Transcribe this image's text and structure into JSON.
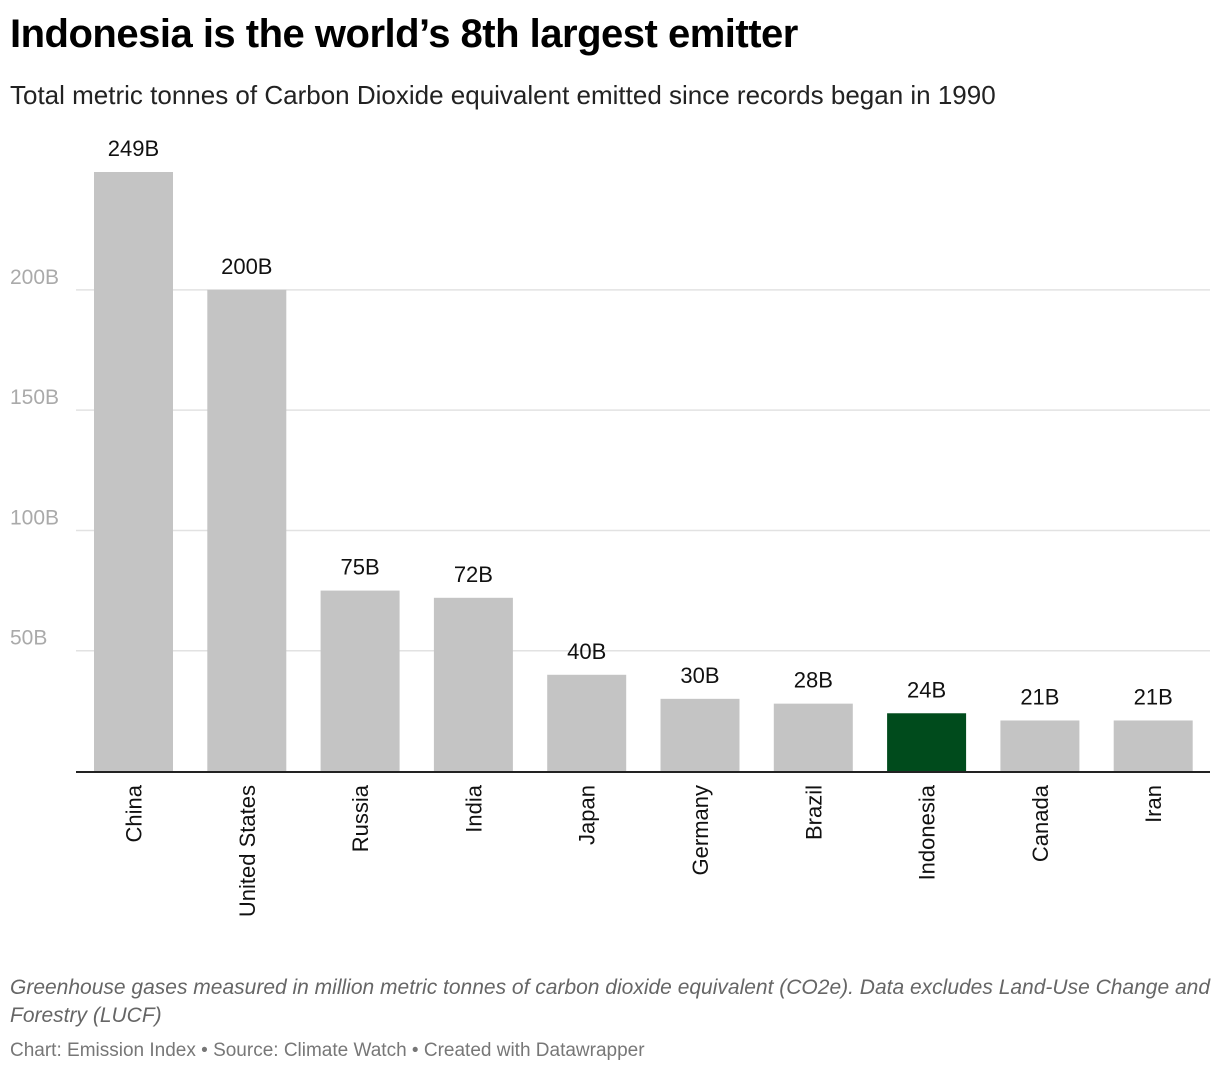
{
  "header": {
    "title": "Indonesia is the world’s 8th largest emitter",
    "subtitle": "Total metric tonnes of Carbon Dioxide equivalent emitted since records began in 1990"
  },
  "footer": {
    "note": "Greenhouse gases measured in million metric tonnes of carbon dioxide equivalent (CO2e). Data excludes Land-Use Change and Forestry (LUCF)",
    "source": "Chart: Emission Index • Source: Climate Watch • Created with Datawrapper"
  },
  "chart_data": {
    "type": "bar",
    "orientation": "vertical",
    "categories": [
      "China",
      "United States",
      "Russia",
      "India",
      "Japan",
      "Germany",
      "Brazil",
      "Indonesia",
      "Canada",
      "Iran"
    ],
    "values": [
      249,
      200,
      75,
      72,
      40,
      30,
      28,
      24,
      21,
      21
    ],
    "value_labels": [
      "249B",
      "200B",
      "75B",
      "72B",
      "40B",
      "30B",
      "28B",
      "24B",
      "21B",
      "21B"
    ],
    "ylim": [
      0,
      249
    ],
    "yticks": [
      50,
      100,
      150,
      200
    ],
    "ytick_labels": [
      "50B",
      "100B",
      "150B",
      "200B"
    ],
    "grid": true,
    "colors": {
      "default": "#c4c4c4",
      "highlight": "#004b1c"
    },
    "highlight_category": "Indonesia"
  }
}
